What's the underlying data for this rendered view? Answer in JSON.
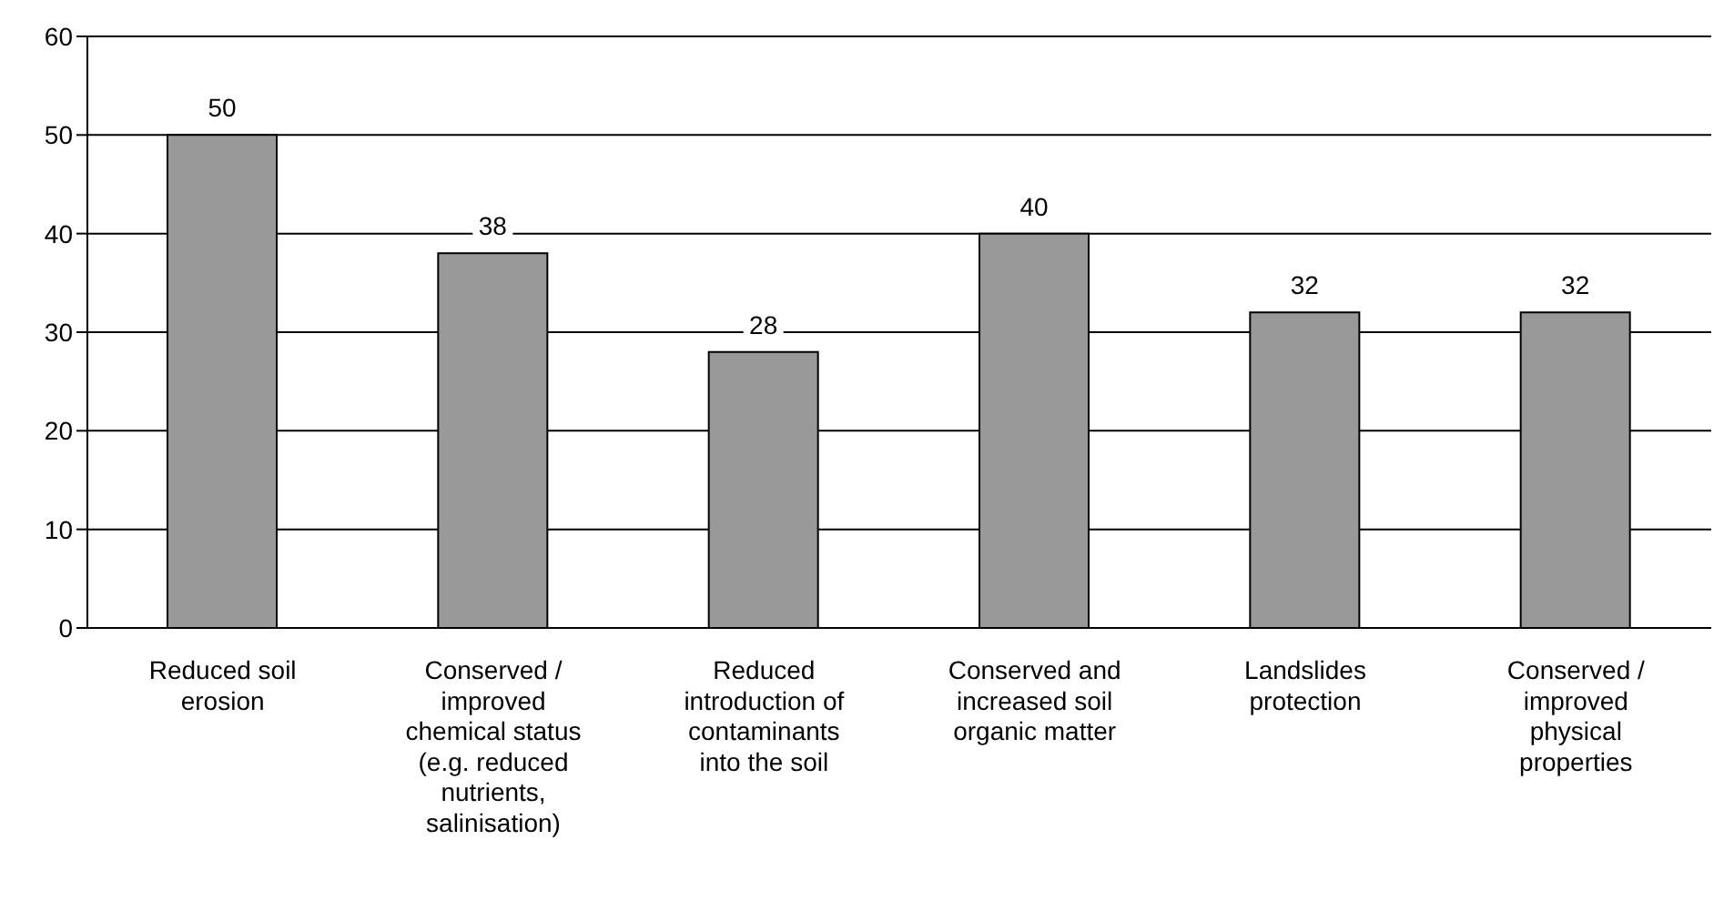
{
  "chart_data": {
    "type": "bar",
    "categories": [
      "Reduced soil erosion",
      "Conserved / improved chemical status (e.g. reduced nutrients, salinisation)",
      "Reduced introduction of contaminants into the soil",
      "Conserved and increased soil organic matter",
      "Landslides protection",
      "Conserved / improved physical properties"
    ],
    "values": [
      50,
      38,
      28,
      40,
      32,
      32
    ],
    "color": "#999999",
    "ylim": [
      0,
      60
    ],
    "yticks": [
      0,
      10,
      20,
      30,
      40,
      50,
      60
    ],
    "grid": "y",
    "data_labels": true,
    "legend": false
  }
}
